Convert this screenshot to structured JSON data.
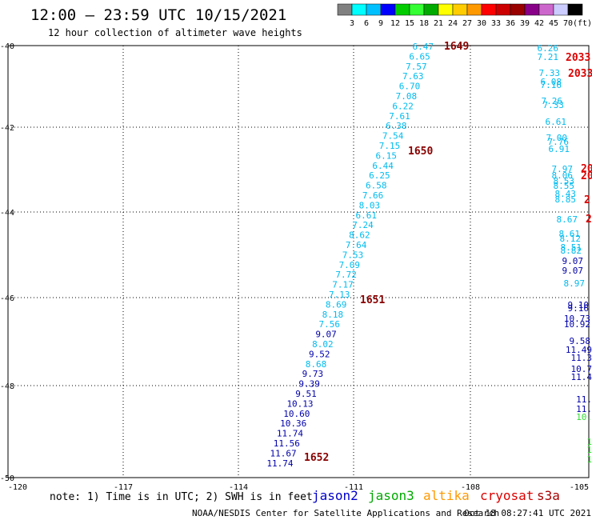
{
  "header": {
    "title": "12:00 – 23:59 UTC 10/15/2021",
    "subtitle": "12 hour collection of altimeter wave heights"
  },
  "legend": {
    "colors": [
      "#808080",
      "#00ffff",
      "#00c0ff",
      "#0000ff",
      "#00cc00",
      "#33ff33",
      "#00aa00",
      "#ffff00",
      "#ffcc00",
      "#ff9900",
      "#ff0000",
      "#cc0000",
      "#990000",
      "#880088",
      "#cc66cc",
      "#ccccff",
      "#000000"
    ],
    "ticks": [
      "3",
      "6",
      "9",
      "12",
      "15",
      "18",
      "21",
      "24",
      "27",
      "30",
      "33",
      "36",
      "39",
      "42",
      "45",
      "70",
      "(ft)"
    ]
  },
  "axes": {
    "lat_labels": [
      "-40",
      "-42",
      "-44",
      "-46",
      "-48",
      "-50"
    ],
    "lon_labels": [
      "-120",
      "-117",
      "-114",
      "-111",
      "-108",
      "-105"
    ]
  },
  "track_a": {
    "heights": [
      "6.47",
      "6.65",
      "7.57",
      "7.63",
      "6.70",
      "7.08",
      "6.22",
      "7.61",
      "6.38",
      "7.54",
      "7.15",
      "6.15",
      "6.44",
      "6.25",
      "6.58",
      "7.66",
      "8.03",
      "6.61",
      "7.24",
      "8.62",
      "7.64",
      "7.53",
      "7.09",
      "7.72",
      "7.17",
      "7.13",
      "8.69",
      "8.18",
      "7.56",
      "9.07",
      "8.02",
      "9.52",
      "8.68",
      "9.73",
      "9.39",
      "9.51",
      "10.13",
      "10.60",
      "10.36",
      "11.74",
      "11.56",
      "11.67",
      "11.74"
    ],
    "colors": [
      "#00bbee",
      "#00bbee",
      "#00bbee",
      "#00bbee",
      "#00bbee",
      "#00bbee",
      "#00bbee",
      "#00bbee",
      "#00bbee",
      "#00bbee",
      "#00bbee",
      "#00bbee",
      "#00bbee",
      "#00bbee",
      "#00bbee",
      "#00bbee",
      "#00bbee",
      "#00bbee",
      "#00bbee",
      "#00bbee",
      "#00bbee",
      "#00bbee",
      "#00bbee",
      "#00bbee",
      "#00bbee",
      "#00bbee",
      "#00bbee",
      "#00bbee",
      "#00bbee",
      "#0000aa",
      "#00bbee",
      "#0000aa",
      "#00bbee",
      "#0000aa",
      "#0000aa",
      "#0000aa",
      "#0000aa",
      "#0000aa",
      "#0000aa",
      "#0000aa",
      "#0000aa",
      "#0000aa",
      "#0000aa"
    ],
    "times": [
      "1649",
      "1650",
      "1651",
      "1652"
    ]
  },
  "track_b": {
    "heights": [
      "6.26",
      "7.21",
      "7.33",
      "6.08",
      "7.16",
      "7.26",
      "7.33",
      "6.61",
      "7.00",
      "7.76",
      "6.91",
      "7.97",
      "8.06",
      "8.53",
      "8.55",
      "8.43",
      "8.85",
      "8.67",
      "8.61",
      "8.12",
      "8.51",
      "8.82",
      "9.07",
      "9.07",
      "8.97",
      "9.10",
      "9.16",
      "10.73",
      "10.92",
      "9.58",
      "11.49",
      "11.3",
      "10.7",
      "11.4",
      "11.",
      "11.",
      "10.",
      "1",
      "1",
      "1"
    ],
    "colors": [
      "#00bbee",
      "#00bbee",
      "#00bbee",
      "#00bbee",
      "#00bbee",
      "#00bbee",
      "#00bbee",
      "#00bbee",
      "#00bbee",
      "#00bbee",
      "#00bbee",
      "#00bbee",
      "#00bbee",
      "#00bbee",
      "#00bbee",
      "#00bbee",
      "#00bbee",
      "#00bbee",
      "#00bbee",
      "#00bbee",
      "#00bbee",
      "#00bbee",
      "#0000aa",
      "#0000aa",
      "#00bbee",
      "#0000aa",
      "#0000aa",
      "#0000aa",
      "#0000aa",
      "#0000aa",
      "#0000aa",
      "#0000aa",
      "#0000aa",
      "#0000aa",
      "#0000aa",
      "#0000aa",
      "#33dd33",
      "#33dd33",
      "#33dd33",
      "#33dd33"
    ],
    "times": [
      "2033",
      "2033",
      "20",
      "20",
      "2",
      "2"
    ]
  },
  "footer": {
    "note": "note: 1) Time is in UTC; 2) SWH is in feet",
    "satellites": [
      {
        "name": "jason2",
        "color": "#0000cc"
      },
      {
        "name": "jason3",
        "color": "#00aa00"
      },
      {
        "name": "altika",
        "color": "#ff9900"
      },
      {
        "name": "cryosat",
        "color": "#dd0000"
      },
      {
        "name": "s3a",
        "color": "#aa0000"
      }
    ],
    "credit": "NOAA/NESDIS Center for Satellite Applications and Research",
    "timestamp": "Oct 18 08:27:41 UTC 2021"
  }
}
